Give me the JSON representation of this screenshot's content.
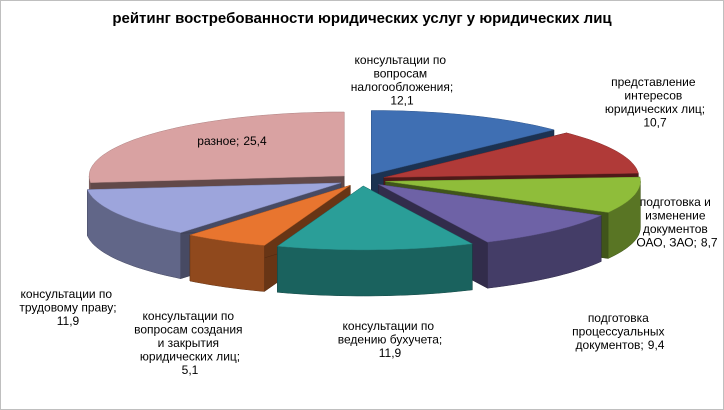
{
  "chart_data": {
    "type": "pie",
    "title": "рейтинг востребованности юридических услуг у юридических лиц",
    "categories": [
      "консультации по вопросам налогообложения;",
      "представление интересов юридических лиц;",
      "подготовка и изменение документов ОАО, ЗАО;",
      "подготовка процессуальных документов;",
      "консультации по ведению бухучета;",
      "консультации по вопросам создания и закрытия юридических лиц;",
      "консультации по трудовому праву;",
      "разное;"
    ],
    "values": [
      12.1,
      10.7,
      8.7,
      9.4,
      11.9,
      5.1,
      11.9,
      25.4
    ],
    "value_labels": [
      "12,1",
      "10,7",
      "8,7",
      "9,4",
      "11,9",
      "5,1",
      "11,9",
      "25,4"
    ],
    "colors": [
      "#3f6fb3",
      "#b03a38",
      "#8fbd3a",
      "#6e62a6",
      "#2a9e98",
      "#e8752f",
      "#9da5dc",
      "#d9a2a2"
    ]
  }
}
